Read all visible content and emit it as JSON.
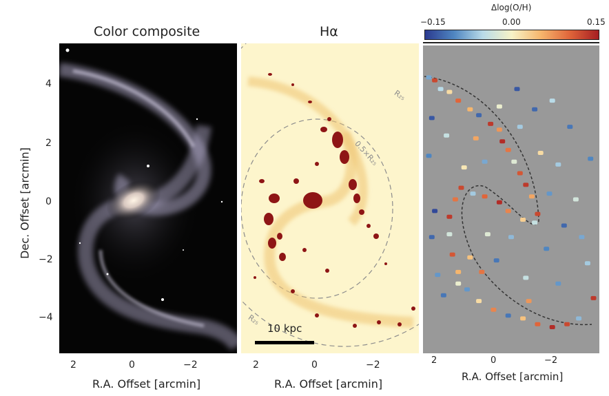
{
  "figure": {
    "panels": [
      {
        "title": "Color composite",
        "xlabel": "R.A. Offset [arcmin]",
        "xticks": [
          "2",
          "0",
          "−2"
        ]
      },
      {
        "title": "Hα",
        "xlabel": "R.A. Offset [arcmin]",
        "xticks": [
          "2",
          "0",
          "−2"
        ],
        "annotations": {
          "r25": "R₂₅",
          "half_r25": "0.5×R₂₅",
          "scalebar": "10 kpc"
        }
      },
      {
        "title": "",
        "xlabel": "R.A. Offset [arcmin]",
        "xticks": [
          "2",
          "0",
          "−2"
        ]
      }
    ],
    "ylabel": "Dec. Offset [arcmin]",
    "yticks": [
      "4",
      "2",
      "0",
      "−2",
      "−4"
    ],
    "colorbar": {
      "label": "Δlog(O/H)",
      "ticks": [
        "−0.15",
        "0.00",
        "0.15"
      ],
      "range": [
        -0.15,
        0.15
      ],
      "colors": [
        "#2b3a8f",
        "#4f86c1",
        "#b9dbe8",
        "#f7f3c7",
        "#f6b66d",
        "#e0653a",
        "#a61e22"
      ]
    }
  },
  "chart_data": {
    "type": "scatter",
    "title": "",
    "xlabel": "R.A. Offset [arcmin]",
    "ylabel": "Dec. Offset [arcmin]",
    "xlim": [
      2.4,
      -3.6
    ],
    "ylim": [
      -5.2,
      5.4
    ],
    "color_scale": {
      "label": "Δlog(O/H)",
      "min": -0.15,
      "max": 0.15
    },
    "points": [
      {
        "x": 2.2,
        "y": 4.3,
        "v": -0.08
      },
      {
        "x": 2.0,
        "y": 4.2,
        "v": 0.12
      },
      {
        "x": 1.8,
        "y": 3.9,
        "v": -0.05
      },
      {
        "x": 1.5,
        "y": 3.8,
        "v": 0.02
      },
      {
        "x": 1.2,
        "y": 3.5,
        "v": 0.1
      },
      {
        "x": 0.8,
        "y": 3.2,
        "v": 0.05
      },
      {
        "x": 0.5,
        "y": 3.0,
        "v": -0.12
      },
      {
        "x": 0.1,
        "y": 2.7,
        "v": 0.13
      },
      {
        "x": -0.2,
        "y": 2.5,
        "v": 0.07
      },
      {
        "x": -0.3,
        "y": 2.1,
        "v": 0.14
      },
      {
        "x": -0.5,
        "y": 1.8,
        "v": 0.09
      },
      {
        "x": -0.7,
        "y": 1.4,
        "v": -0.02
      },
      {
        "x": -0.9,
        "y": 1.0,
        "v": 0.11
      },
      {
        "x": -1.1,
        "y": 0.6,
        "v": 0.13
      },
      {
        "x": -1.3,
        "y": 0.2,
        "v": 0.06
      },
      {
        "x": -1.5,
        "y": -0.4,
        "v": 0.12
      },
      {
        "x": -1.4,
        "y": -0.7,
        "v": -0.04
      },
      {
        "x": -1.0,
        "y": -0.6,
        "v": 0.03
      },
      {
        "x": -0.5,
        "y": -0.3,
        "v": 0.08
      },
      {
        "x": -0.2,
        "y": 0.0,
        "v": 0.14
      },
      {
        "x": 0.3,
        "y": 0.2,
        "v": 0.1
      },
      {
        "x": 0.7,
        "y": 0.3,
        "v": -0.06
      },
      {
        "x": 1.1,
        "y": 0.5,
        "v": 0.12
      },
      {
        "x": 1.3,
        "y": 0.1,
        "v": 0.09
      },
      {
        "x": 1.5,
        "y": -0.5,
        "v": 0.13
      },
      {
        "x": 1.5,
        "y": -1.1,
        "v": -0.03
      },
      {
        "x": 1.4,
        "y": -1.8,
        "v": 0.11
      },
      {
        "x": 1.2,
        "y": -2.4,
        "v": 0.05
      },
      {
        "x": 0.9,
        "y": -3.0,
        "v": -0.09
      },
      {
        "x": 0.5,
        "y": -3.4,
        "v": 0.02
      },
      {
        "x": 0.0,
        "y": -3.7,
        "v": 0.08
      },
      {
        "x": -0.5,
        "y": -3.9,
        "v": -0.11
      },
      {
        "x": -1.0,
        "y": -4.0,
        "v": 0.04
      },
      {
        "x": -1.5,
        "y": -4.2,
        "v": 0.1
      },
      {
        "x": -2.0,
        "y": -4.3,
        "v": 0.14
      },
      {
        "x": -2.5,
        "y": -4.2,
        "v": 0.12
      },
      {
        "x": -2.9,
        "y": -4.0,
        "v": -0.07
      },
      {
        "x": -3.4,
        "y": -3.3,
        "v": 0.13
      },
      {
        "x": 2.1,
        "y": 2.9,
        "v": -0.13
      },
      {
        "x": 2.2,
        "y": 1.6,
        "v": -0.1
      },
      {
        "x": 2.0,
        "y": -0.3,
        "v": -0.14
      },
      {
        "x": 2.1,
        "y": -1.2,
        "v": -0.12
      },
      {
        "x": 1.9,
        "y": -2.5,
        "v": -0.09
      },
      {
        "x": 1.7,
        "y": -3.2,
        "v": -0.11
      },
      {
        "x": 0.3,
        "y": 1.4,
        "v": -0.08
      },
      {
        "x": 0.6,
        "y": 2.2,
        "v": 0.06
      },
      {
        "x": -0.8,
        "y": 3.9,
        "v": -0.13
      },
      {
        "x": -1.4,
        "y": 3.2,
        "v": -0.12
      },
      {
        "x": -2.0,
        "y": 3.5,
        "v": -0.05
      },
      {
        "x": -2.6,
        "y": 2.6,
        "v": -0.11
      },
      {
        "x": -2.2,
        "y": 1.3,
        "v": -0.06
      },
      {
        "x": -1.9,
        "y": 0.3,
        "v": -0.09
      },
      {
        "x": -2.8,
        "y": 0.1,
        "v": -0.03
      },
      {
        "x": -2.4,
        "y": -0.8,
        "v": -0.12
      },
      {
        "x": -3.0,
        "y": -1.2,
        "v": -0.08
      },
      {
        "x": -1.8,
        "y": -1.6,
        "v": -0.1
      },
      {
        "x": -0.6,
        "y": -1.2,
        "v": -0.07
      },
      {
        "x": 0.2,
        "y": -1.1,
        "v": -0.02
      },
      {
        "x": -0.1,
        "y": -2.0,
        "v": -0.11
      },
      {
        "x": 0.8,
        "y": -1.9,
        "v": 0.04
      },
      {
        "x": -2.2,
        "y": -2.8,
        "v": -0.09
      },
      {
        "x": -1.1,
        "y": -2.6,
        "v": -0.04
      },
      {
        "x": -3.2,
        "y": -2.1,
        "v": -0.06
      },
      {
        "x": -3.3,
        "y": 1.5,
        "v": -0.1
      },
      {
        "x": -0.9,
        "y": 2.6,
        "v": -0.06
      },
      {
        "x": -0.2,
        "y": 3.3,
        "v": -0.01
      },
      {
        "x": 1.6,
        "y": 2.3,
        "v": -0.04
      },
      {
        "x": 1.0,
        "y": 1.2,
        "v": 0.01
      },
      {
        "x": -1.6,
        "y": 1.7,
        "v": 0.02
      },
      {
        "x": 0.4,
        "y": -2.4,
        "v": 0.09
      },
      {
        "x": 1.2,
        "y": -2.8,
        "v": -0.01
      },
      {
        "x": -1.2,
        "y": -3.4,
        "v": 0.07
      }
    ]
  }
}
